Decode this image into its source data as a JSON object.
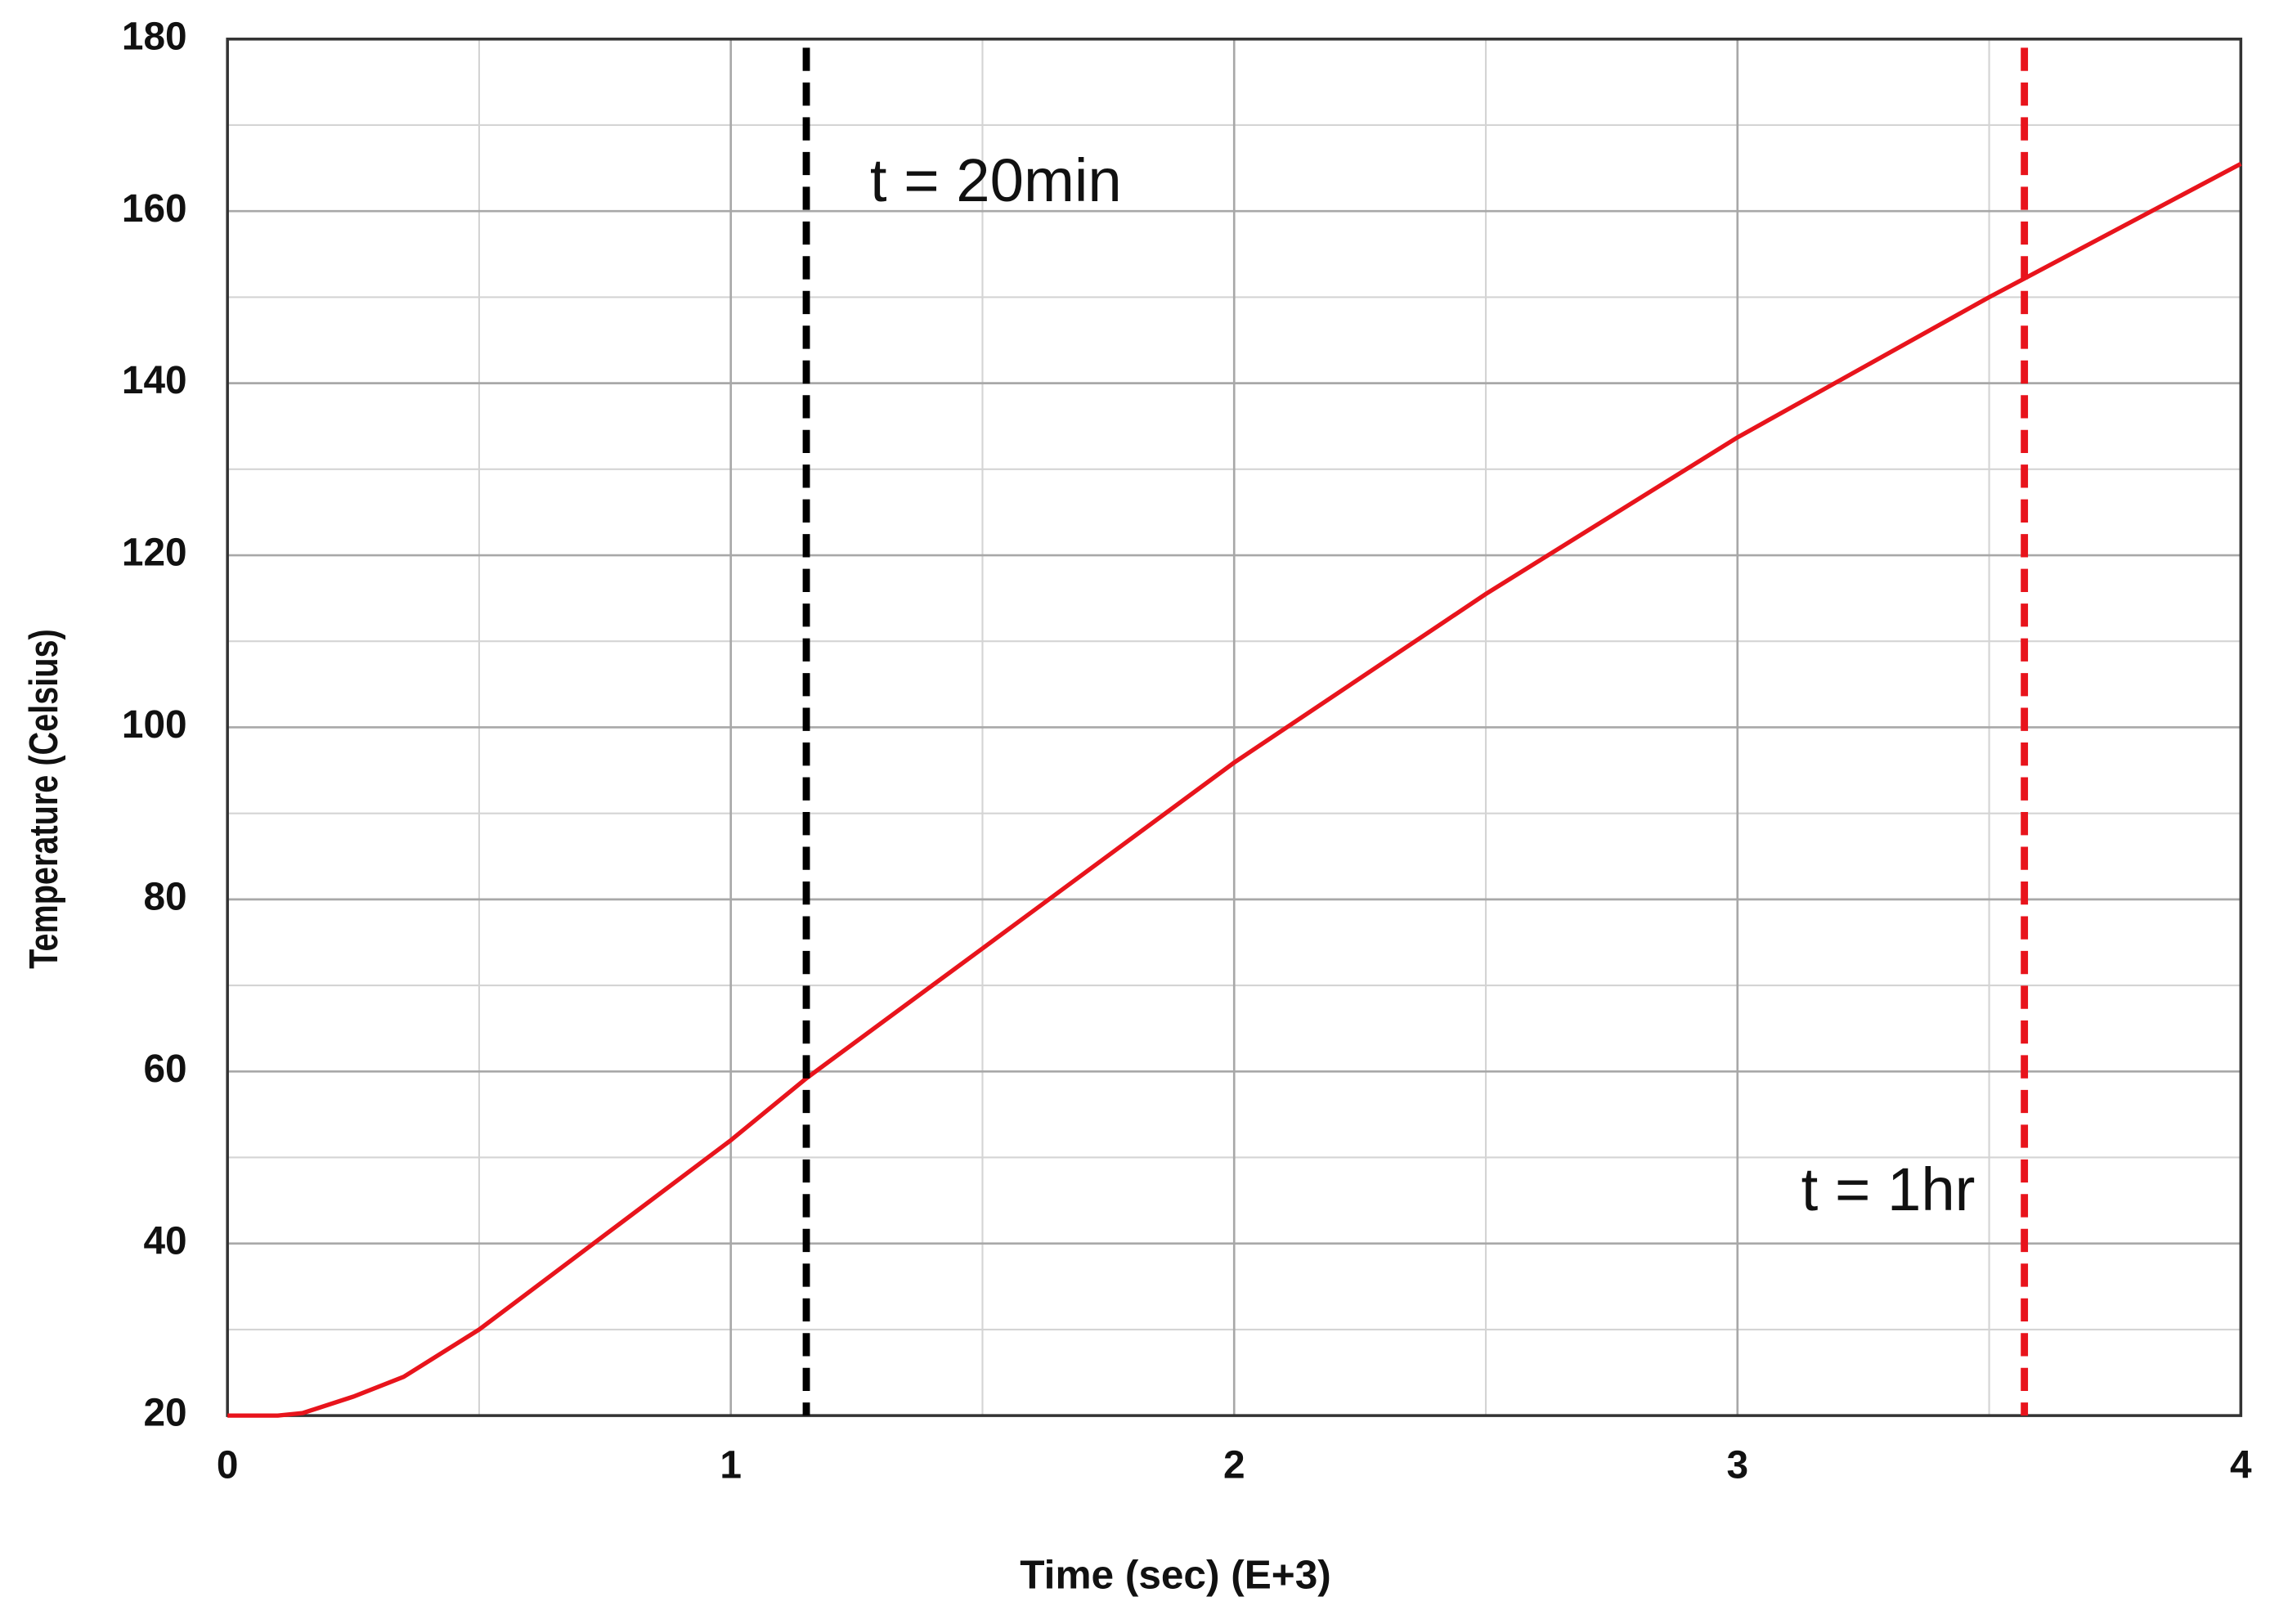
{
  "chart_data": {
    "type": "line",
    "x_label": "Time (sec) (E+3)",
    "y_label": "Temperature (Celsius)",
    "x": [
      0,
      0.1,
      0.15,
      0.25,
      0.35,
      0.5,
      0.75,
      1,
      1.15,
      1.5,
      2,
      2.5,
      3,
      3.5,
      4
    ],
    "values": [
      20,
      20,
      20.3,
      22.2,
      24.5,
      30,
      41,
      52,
      59.2,
      74.3,
      95.9,
      115.5,
      133.7,
      150,
      165.5
    ],
    "color": "#e8141c",
    "xlim": [
      0,
      4
    ],
    "ylim": [
      20,
      180
    ],
    "xticks": [
      0,
      1,
      2,
      3,
      4
    ],
    "yticks": [
      20,
      40,
      60,
      80,
      100,
      120,
      140,
      160,
      180
    ],
    "grid": true,
    "minor_grid": true,
    "vlines": [
      {
        "x": 1.15,
        "color": "#000000",
        "label": "t = 20min"
      },
      {
        "x": 3.57,
        "color": "#e8141c",
        "label": "t = 1hr"
      }
    ]
  }
}
